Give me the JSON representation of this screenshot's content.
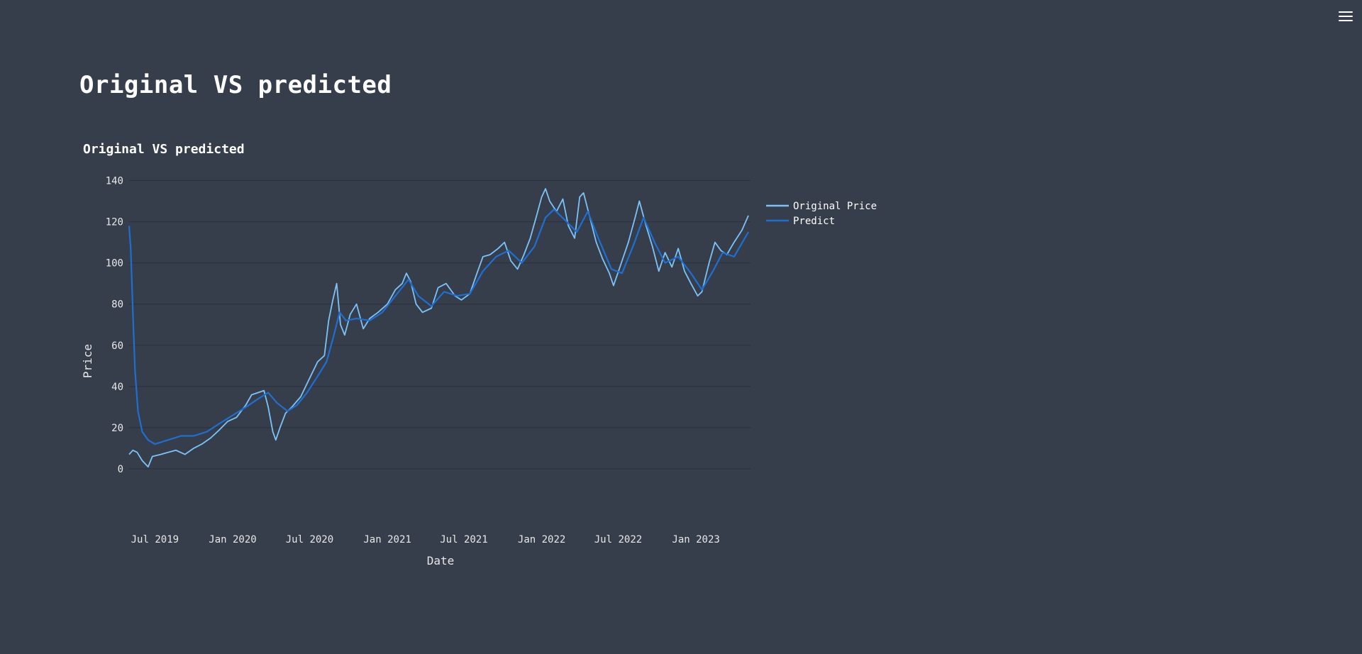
{
  "page": {
    "heading": "Original VS predicted"
  },
  "colors": {
    "background": "#363d4b",
    "original": "#7cc4f8",
    "predict": "#1f6fd1",
    "grid": "#2b313c",
    "text": "#ffffff"
  },
  "chart_data": {
    "type": "line",
    "title": "Original VS predicted",
    "xlabel": "Date",
    "ylabel": "Price",
    "x_range": [
      "2019-05-01",
      "2023-05-10"
    ],
    "ylim": [
      -10,
      145
    ],
    "y_ticks": [
      0,
      20,
      40,
      60,
      80,
      100,
      120,
      140
    ],
    "x_ticks": [
      {
        "date": "2019-07-01",
        "label": "Jul 2019"
      },
      {
        "date": "2020-01-01",
        "label": "Jan 2020"
      },
      {
        "date": "2020-07-01",
        "label": "Jul 2020"
      },
      {
        "date": "2021-01-01",
        "label": "Jan 2021"
      },
      {
        "date": "2021-07-01",
        "label": "Jul 2021"
      },
      {
        "date": "2022-01-01",
        "label": "Jan 2022"
      },
      {
        "date": "2022-07-01",
        "label": "Jul 2022"
      },
      {
        "date": "2023-01-01",
        "label": "Jan 2023"
      }
    ],
    "grid": true,
    "legend_position": "top-right",
    "series": [
      {
        "name": "Original Price",
        "color": "#7cc4f8",
        "points": [
          [
            "2019-05-01",
            7
          ],
          [
            "2019-05-10",
            9
          ],
          [
            "2019-05-20",
            8
          ],
          [
            "2019-06-01",
            4
          ],
          [
            "2019-06-15",
            1
          ],
          [
            "2019-06-25",
            6
          ],
          [
            "2019-07-15",
            7
          ],
          [
            "2019-08-01",
            8
          ],
          [
            "2019-08-20",
            9
          ],
          [
            "2019-09-10",
            7
          ],
          [
            "2019-10-01",
            10
          ],
          [
            "2019-10-20",
            12
          ],
          [
            "2019-11-10",
            15
          ],
          [
            "2019-12-01",
            19
          ],
          [
            "2019-12-20",
            23
          ],
          [
            "2020-01-10",
            25
          ],
          [
            "2020-02-01",
            31
          ],
          [
            "2020-02-15",
            36
          ],
          [
            "2020-03-01",
            37
          ],
          [
            "2020-03-15",
            38
          ],
          [
            "2020-03-25",
            30
          ],
          [
            "2020-04-05",
            18
          ],
          [
            "2020-04-12",
            14
          ],
          [
            "2020-04-22",
            20
          ],
          [
            "2020-05-05",
            27
          ],
          [
            "2020-05-20",
            30
          ],
          [
            "2020-06-10",
            35
          ],
          [
            "2020-07-01",
            44
          ],
          [
            "2020-07-20",
            52
          ],
          [
            "2020-08-05",
            55
          ],
          [
            "2020-08-15",
            72
          ],
          [
            "2020-08-25",
            82
          ],
          [
            "2020-09-03",
            90
          ],
          [
            "2020-09-12",
            70
          ],
          [
            "2020-09-22",
            65
          ],
          [
            "2020-10-05",
            75
          ],
          [
            "2020-10-20",
            80
          ],
          [
            "2020-11-05",
            68
          ],
          [
            "2020-11-20",
            73
          ],
          [
            "2020-12-10",
            76
          ],
          [
            "2021-01-01",
            80
          ],
          [
            "2021-01-20",
            87
          ],
          [
            "2021-02-05",
            90
          ],
          [
            "2021-02-15",
            95
          ],
          [
            "2021-02-25",
            91
          ],
          [
            "2021-03-10",
            80
          ],
          [
            "2021-03-25",
            76
          ],
          [
            "2021-04-15",
            78
          ],
          [
            "2021-05-01",
            88
          ],
          [
            "2021-05-20",
            90
          ],
          [
            "2021-06-10",
            84
          ],
          [
            "2021-06-25",
            82
          ],
          [
            "2021-07-15",
            85
          ],
          [
            "2021-08-01",
            95
          ],
          [
            "2021-08-15",
            103
          ],
          [
            "2021-09-01",
            104
          ],
          [
            "2021-09-20",
            107
          ],
          [
            "2021-10-05",
            110
          ],
          [
            "2021-10-20",
            101
          ],
          [
            "2021-11-05",
            97
          ],
          [
            "2021-11-20",
            104
          ],
          [
            "2021-12-05",
            112
          ],
          [
            "2021-12-20",
            123
          ],
          [
            "2022-01-01",
            132
          ],
          [
            "2022-01-10",
            136
          ],
          [
            "2022-01-20",
            130
          ],
          [
            "2022-02-05",
            125
          ],
          [
            "2022-02-20",
            131
          ],
          [
            "2022-03-05",
            118
          ],
          [
            "2022-03-20",
            112
          ],
          [
            "2022-04-01",
            132
          ],
          [
            "2022-04-10",
            134
          ],
          [
            "2022-04-25",
            122
          ],
          [
            "2022-05-10",
            110
          ],
          [
            "2022-05-25",
            102
          ],
          [
            "2022-06-10",
            95
          ],
          [
            "2022-06-20",
            89
          ],
          [
            "2022-07-05",
            98
          ],
          [
            "2022-07-25",
            110
          ],
          [
            "2022-08-10",
            122
          ],
          [
            "2022-08-20",
            130
          ],
          [
            "2022-09-05",
            118
          ],
          [
            "2022-09-20",
            108
          ],
          [
            "2022-10-05",
            96
          ],
          [
            "2022-10-20",
            105
          ],
          [
            "2022-11-05",
            98
          ],
          [
            "2022-11-20",
            107
          ],
          [
            "2022-12-05",
            96
          ],
          [
            "2022-12-20",
            90
          ],
          [
            "2023-01-05",
            84
          ],
          [
            "2023-01-15",
            86
          ],
          [
            "2023-02-01",
            100
          ],
          [
            "2023-02-15",
            110
          ],
          [
            "2023-03-01",
            106
          ],
          [
            "2023-03-15",
            104
          ],
          [
            "2023-04-01",
            110
          ],
          [
            "2023-04-20",
            116
          ],
          [
            "2023-05-05",
            123
          ]
        ]
      },
      {
        "name": "Predict",
        "color": "#1f6fd1",
        "points": [
          [
            "2019-05-01",
            118
          ],
          [
            "2019-05-05",
            106
          ],
          [
            "2019-05-10",
            75
          ],
          [
            "2019-05-15",
            48
          ],
          [
            "2019-05-22",
            28
          ],
          [
            "2019-06-01",
            18
          ],
          [
            "2019-06-15",
            14
          ],
          [
            "2019-07-01",
            12
          ],
          [
            "2019-08-01",
            14
          ],
          [
            "2019-09-01",
            16
          ],
          [
            "2019-10-01",
            16
          ],
          [
            "2019-11-01",
            18
          ],
          [
            "2019-12-01",
            22
          ],
          [
            "2020-01-01",
            26
          ],
          [
            "2020-02-01",
            30
          ],
          [
            "2020-03-01",
            34
          ],
          [
            "2020-03-25",
            37
          ],
          [
            "2020-04-15",
            32
          ],
          [
            "2020-05-10",
            28
          ],
          [
            "2020-06-01",
            31
          ],
          [
            "2020-06-25",
            37
          ],
          [
            "2020-07-20",
            45
          ],
          [
            "2020-08-10",
            52
          ],
          [
            "2020-08-25",
            63
          ],
          [
            "2020-09-10",
            76
          ],
          [
            "2020-09-25",
            72
          ],
          [
            "2020-10-20",
            73
          ],
          [
            "2020-11-20",
            72
          ],
          [
            "2020-12-20",
            76
          ],
          [
            "2021-01-20",
            84
          ],
          [
            "2021-02-20",
            92
          ],
          [
            "2021-03-15",
            84
          ],
          [
            "2021-04-15",
            79
          ],
          [
            "2021-05-15",
            86
          ],
          [
            "2021-06-15",
            84
          ],
          [
            "2021-07-15",
            85
          ],
          [
            "2021-08-15",
            96
          ],
          [
            "2021-09-15",
            103
          ],
          [
            "2021-10-15",
            106
          ],
          [
            "2021-11-15",
            100
          ],
          [
            "2021-12-15",
            108
          ],
          [
            "2022-01-10",
            122
          ],
          [
            "2022-01-30",
            126
          ],
          [
            "2022-03-01",
            120
          ],
          [
            "2022-03-25",
            115
          ],
          [
            "2022-04-20",
            125
          ],
          [
            "2022-05-15",
            112
          ],
          [
            "2022-06-15",
            97
          ],
          [
            "2022-07-10",
            95
          ],
          [
            "2022-08-05",
            108
          ],
          [
            "2022-08-30",
            122
          ],
          [
            "2022-09-25",
            110
          ],
          [
            "2022-10-20",
            100
          ],
          [
            "2022-11-20",
            103
          ],
          [
            "2022-12-20",
            95
          ],
          [
            "2023-01-15",
            87
          ],
          [
            "2023-02-10",
            96
          ],
          [
            "2023-03-05",
            105
          ],
          [
            "2023-04-01",
            103
          ],
          [
            "2023-05-05",
            115
          ]
        ]
      }
    ]
  }
}
